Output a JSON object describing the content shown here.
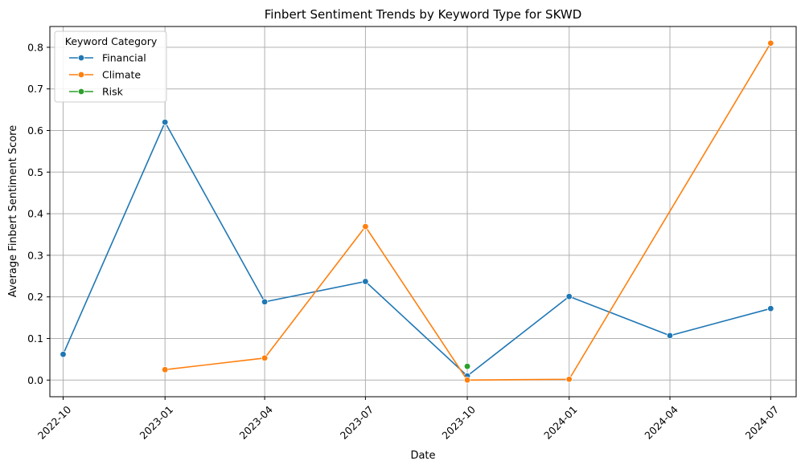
{
  "chart_data": {
    "type": "line",
    "title": "Finbert Sentiment Trends by Keyword Type for SKWD",
    "xlabel": "Date",
    "ylabel": "Average Finbert Sentiment Score",
    "x_ticks": [
      "2022-10",
      "2023-01",
      "2023-04",
      "2023-07",
      "2023-10",
      "2024-01",
      "2024-04",
      "2024-07"
    ],
    "y_ticks": [
      "0.0",
      "0.1",
      "0.2",
      "0.3",
      "0.4",
      "0.5",
      "0.6",
      "0.7",
      "0.8"
    ],
    "ylim": [
      -0.04,
      0.85
    ],
    "xlim": [
      "2022-09-19",
      "2024-07-24"
    ],
    "grid": true,
    "legend": {
      "title": "Keyword Category",
      "placement": "top-left"
    },
    "series": [
      {
        "name": "Financial",
        "color": "#1f77b4",
        "points": [
          {
            "x": "2022-10-01",
            "y": 0.062
          },
          {
            "x": "2023-01-01",
            "y": 0.62
          },
          {
            "x": "2023-04-01",
            "y": 0.188
          },
          {
            "x": "2023-07-01",
            "y": 0.237
          },
          {
            "x": "2023-10-01",
            "y": 0.01
          },
          {
            "x": "2024-01-01",
            "y": 0.201
          },
          {
            "x": "2024-04-01",
            "y": 0.107
          },
          {
            "x": "2024-07-01",
            "y": 0.172
          }
        ]
      },
      {
        "name": "Climate",
        "color": "#ff7f0e",
        "points": [
          {
            "x": "2023-01-01",
            "y": 0.025
          },
          {
            "x": "2023-04-01",
            "y": 0.053
          },
          {
            "x": "2023-07-01",
            "y": 0.369
          },
          {
            "x": "2023-10-01",
            "y": 0.0
          },
          {
            "x": "2024-01-01",
            "y": 0.002
          },
          {
            "x": "2024-07-01",
            "y": 0.81
          }
        ]
      },
      {
        "name": "Risk",
        "color": "#2ca02c",
        "points": [
          {
            "x": "2023-10-01",
            "y": 0.033
          }
        ]
      }
    ]
  }
}
